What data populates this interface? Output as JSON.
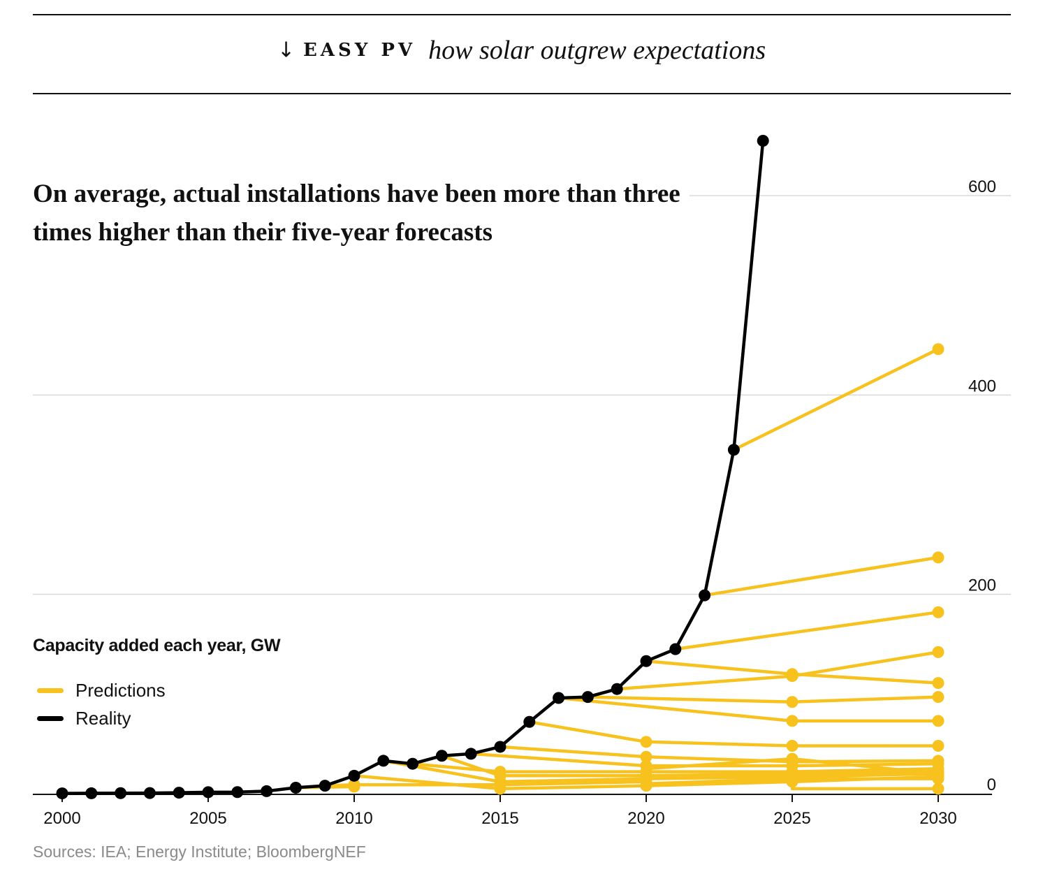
{
  "header": {
    "arrow": "↓",
    "kicker": "EASY PV",
    "tagline": "how solar outgrew expectations"
  },
  "headline": "On average, actual installations have been more than three times higher than their five-year forecasts",
  "colors": {
    "predictions": "#f7c11e",
    "reality": "#000000",
    "grid": "#d9d9d9"
  },
  "chart_data": {
    "type": "line",
    "ylabel": "Capacity added each year, GW",
    "xlim": [
      2000,
      2030
    ],
    "ylim": [
      0,
      650
    ],
    "x_ticks": [
      "2000",
      "2005",
      "2010",
      "2015",
      "2020",
      "2025",
      "2030"
    ],
    "y_ticks": [
      "0",
      "200",
      "400",
      "600"
    ],
    "y_axis_side": "right",
    "legend": [
      {
        "label": "Predictions",
        "color": "#f7c11e"
      },
      {
        "label": "Reality",
        "color": "#000000"
      }
    ],
    "series": [
      {
        "name": "Reality",
        "color": "#000000",
        "points": [
          [
            2000,
            0.3
          ],
          [
            2001,
            0.4
          ],
          [
            2002,
            0.5
          ],
          [
            2003,
            0.6
          ],
          [
            2004,
            1
          ],
          [
            2005,
            1.5
          ],
          [
            2006,
            1.6
          ],
          [
            2007,
            2.5
          ],
          [
            2008,
            6
          ],
          [
            2009,
            8
          ],
          [
            2010,
            18
          ],
          [
            2011,
            33
          ],
          [
            2012,
            30
          ],
          [
            2013,
            38
          ],
          [
            2014,
            40
          ],
          [
            2015,
            47
          ],
          [
            2016,
            72
          ],
          [
            2017,
            96
          ],
          [
            2018,
            97
          ],
          [
            2019,
            105
          ],
          [
            2020,
            133
          ],
          [
            2021,
            145
          ],
          [
            2022,
            199
          ],
          [
            2023,
            345
          ],
          [
            2024,
            655
          ]
        ]
      },
      {
        "name": "Predictions",
        "color": "#f7c11e",
        "forecasts": [
          [
            [
              2008,
              6
            ],
            [
              2010,
              7
            ]
          ],
          [
            [
              2009,
              8
            ],
            [
              2010,
              9
            ],
            [
              2015,
              9
            ],
            [
              2020,
              12
            ]
          ],
          [
            [
              2010,
              18
            ],
            [
              2015,
              5
            ],
            [
              2020,
              8
            ]
          ],
          [
            [
              2011,
              33
            ],
            [
              2015,
              12
            ],
            [
              2020,
              15
            ],
            [
              2025,
              17
            ],
            [
              2030,
              20
            ]
          ],
          [
            [
              2012,
              30
            ],
            [
              2015,
              22
            ],
            [
              2020,
              22
            ],
            [
              2025,
              22
            ],
            [
              2030,
              25
            ]
          ],
          [
            [
              2013,
              38
            ],
            [
              2015,
              18
            ],
            [
              2020,
              18
            ],
            [
              2025,
              20
            ],
            [
              2030,
              22
            ]
          ],
          [
            [
              2014,
              40
            ],
            [
              2020,
              28
            ],
            [
              2025,
              28
            ],
            [
              2030,
              30
            ]
          ],
          [
            [
              2015,
              47
            ],
            [
              2020,
              37
            ],
            [
              2025,
              32
            ],
            [
              2030,
              33
            ]
          ],
          [
            [
              2016,
              72
            ],
            [
              2020,
              52
            ],
            [
              2025,
              48
            ],
            [
              2030,
              48
            ]
          ],
          [
            [
              2017,
              96
            ],
            [
              2025,
              73
            ],
            [
              2030,
              73
            ]
          ],
          [
            [
              2018,
              97
            ],
            [
              2025,
              92
            ],
            [
              2030,
              97
            ]
          ],
          [
            [
              2019,
              105
            ],
            [
              2025,
              118
            ],
            [
              2030,
              142
            ]
          ],
          [
            [
              2020,
              133
            ],
            [
              2025,
              120
            ],
            [
              2030,
              111
            ]
          ],
          [
            [
              2021,
              145
            ],
            [
              2030,
              182
            ]
          ],
          [
            [
              2022,
              199
            ],
            [
              2030,
              237
            ]
          ],
          [
            [
              2023,
              345
            ],
            [
              2030,
              446
            ]
          ],
          [
            [
              2020,
              8
            ],
            [
              2025,
              12
            ],
            [
              2030,
              17
            ]
          ],
          [
            [
              2020,
              10
            ],
            [
              2025,
              15
            ],
            [
              2030,
              15
            ]
          ],
          [
            [
              2020,
              25
            ],
            [
              2025,
              35
            ],
            [
              2030,
              20
            ]
          ],
          [
            [
              2025,
              5
            ],
            [
              2030,
              5
            ]
          ]
        ]
      }
    ]
  },
  "source": "Sources: IEA; Energy Institute; BloombergNEF"
}
